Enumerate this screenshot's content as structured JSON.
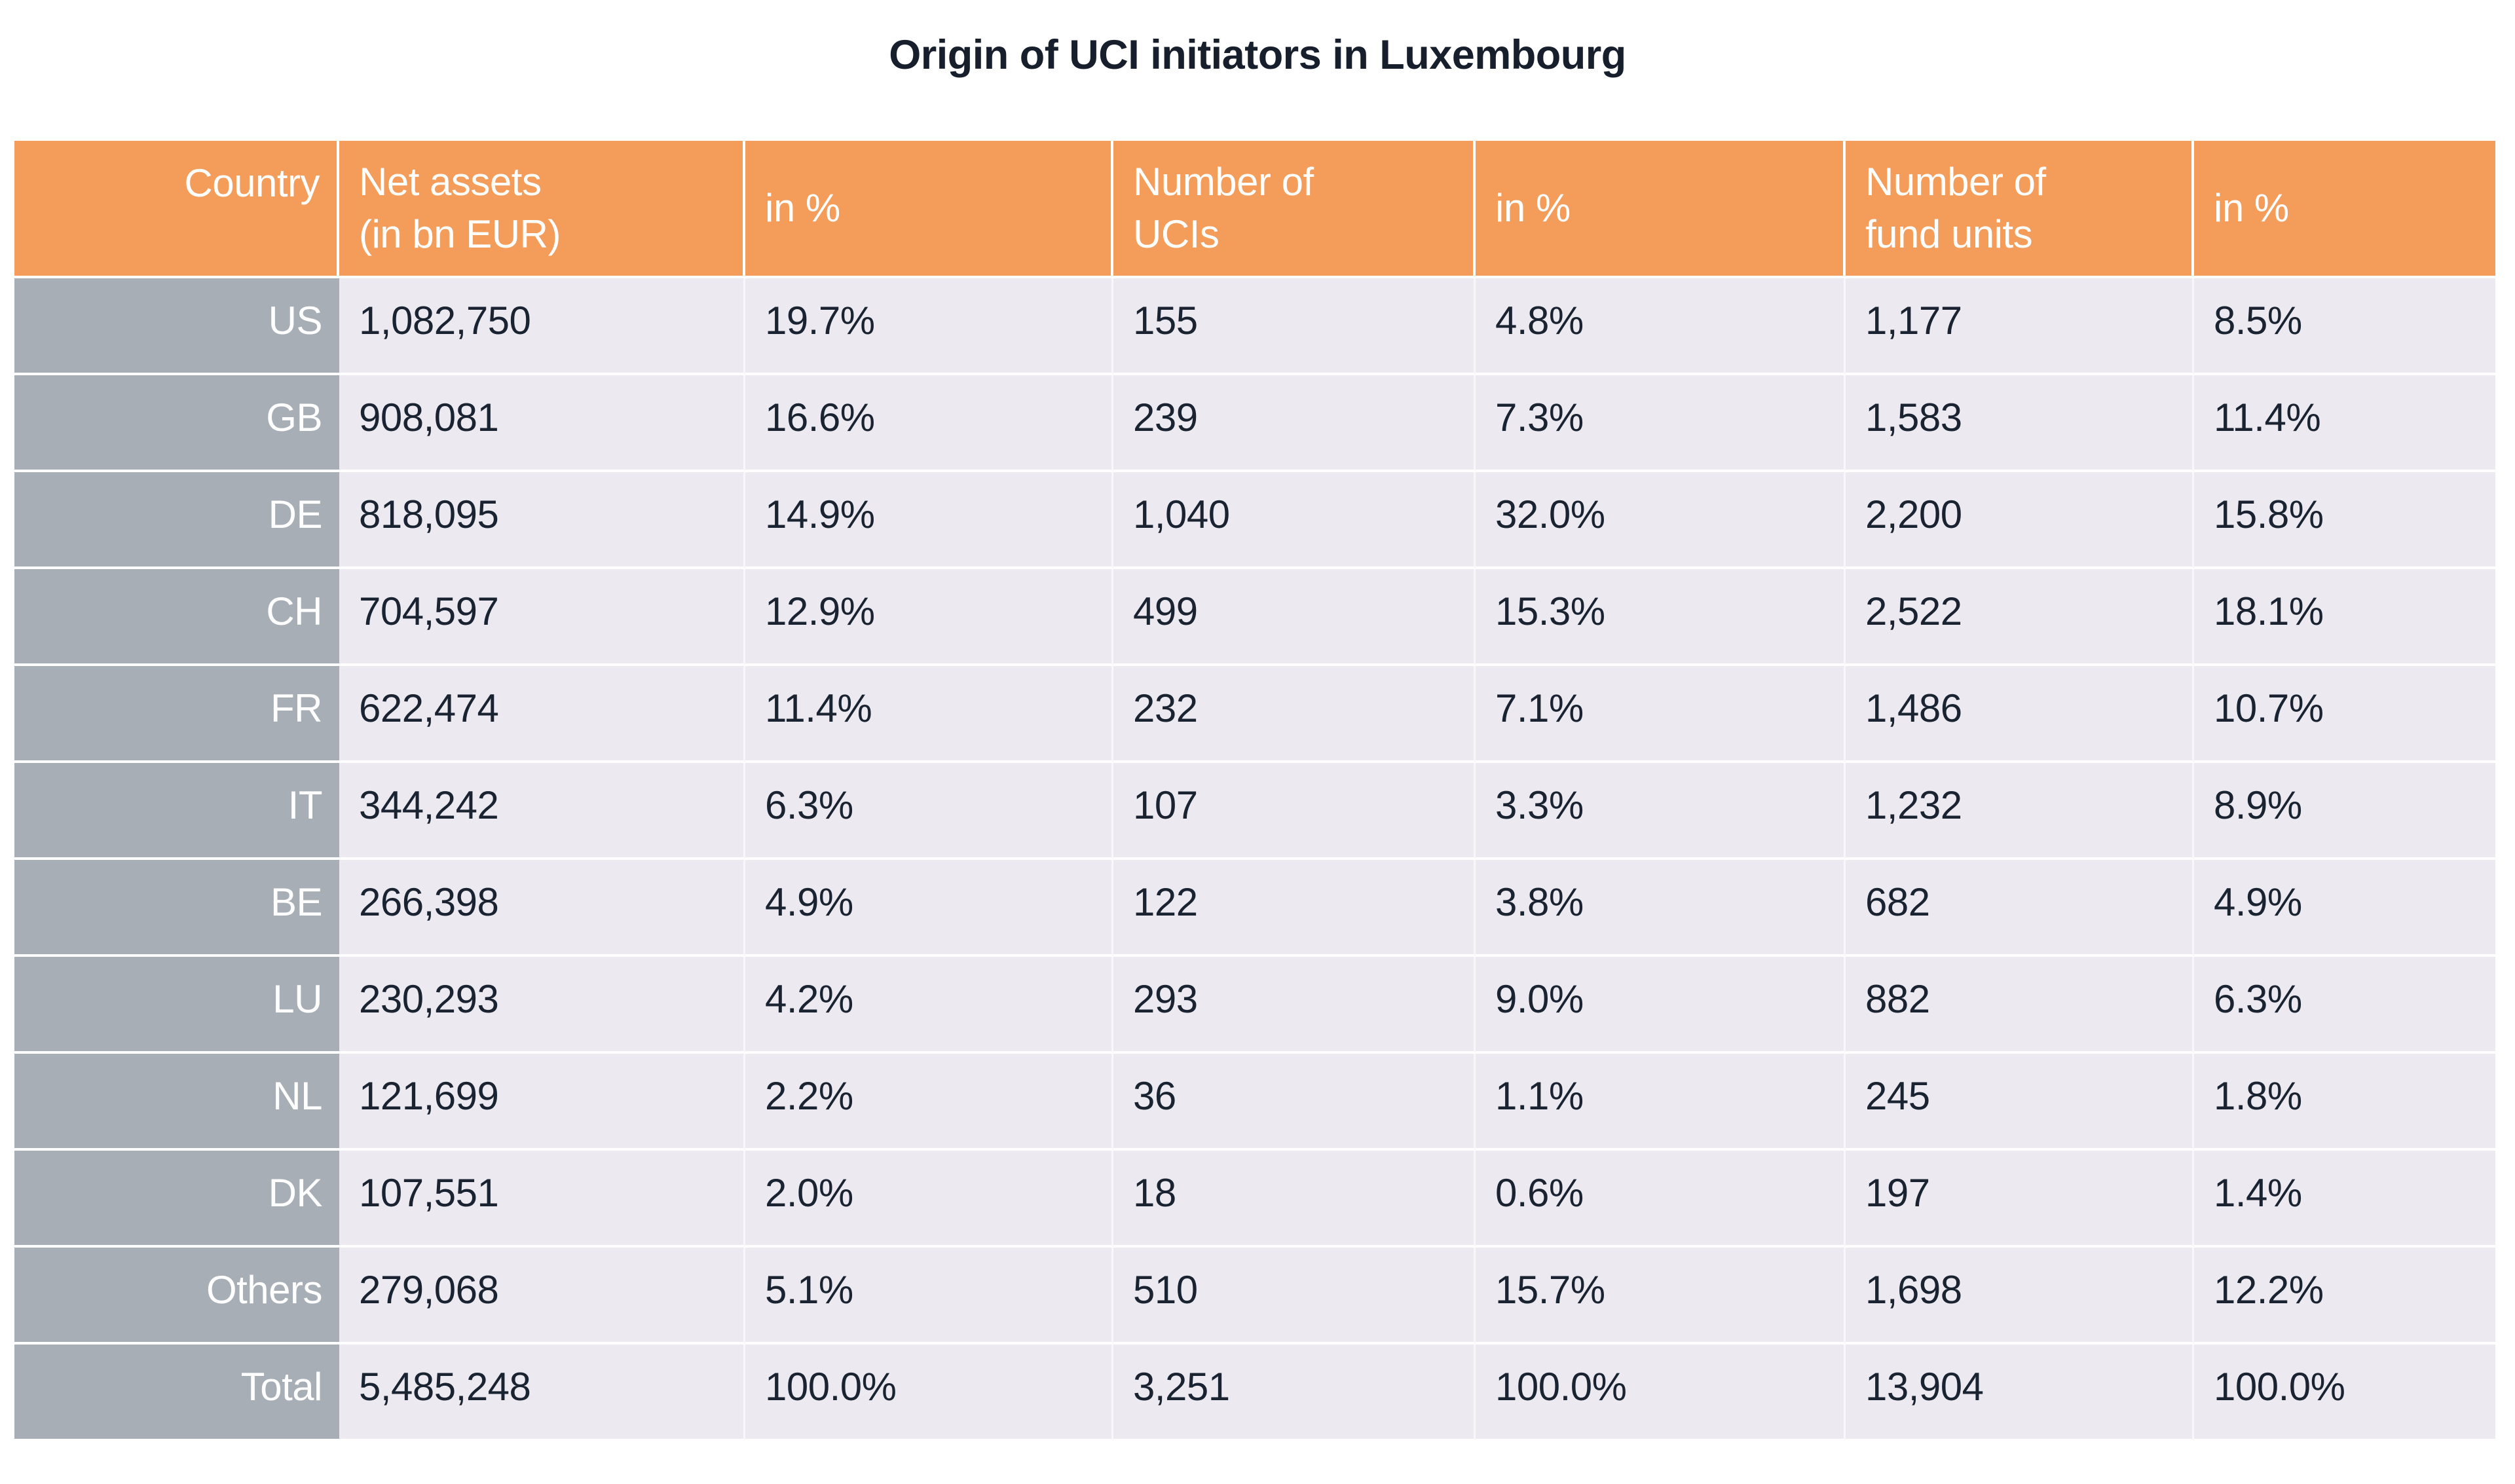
{
  "title": "Origin of UCI initiators in Luxembourg",
  "colors": {
    "header_bg": "#F49C5A",
    "country_column_bg": "#A8AEB5",
    "row_bg": "#ECEAF0",
    "text": "#1A2331",
    "header_text": "#FFFFFF"
  },
  "header": {
    "country": "Country",
    "net_assets": "Net assets\n(in bn EUR)",
    "net_assets_pct": "in %",
    "ucis": "Number of\nUCIs",
    "ucis_pct": "in %",
    "fund_units": "Number of\nfund units",
    "fund_units_pct": "in %"
  },
  "chart_data": {
    "type": "table",
    "title": "Origin of UCI initiators in Luxembourg",
    "columns": [
      "Country",
      "Net assets (in bn EUR)",
      "in %",
      "Number of UCIs",
      "in %",
      "Number of fund units",
      "in %"
    ],
    "rows": [
      {
        "country": "US",
        "net_assets": "1,082,750",
        "net_assets_pct": "19.7%",
        "ucis": "155",
        "ucis_pct": "4.8%",
        "fund_units": "1,177",
        "fund_units_pct": "8.5%"
      },
      {
        "country": "GB",
        "net_assets": "908,081",
        "net_assets_pct": "16.6%",
        "ucis": "239",
        "ucis_pct": "7.3%",
        "fund_units": "1,583",
        "fund_units_pct": "11.4%"
      },
      {
        "country": "DE",
        "net_assets": "818,095",
        "net_assets_pct": "14.9%",
        "ucis": "1,040",
        "ucis_pct": "32.0%",
        "fund_units": "2,200",
        "fund_units_pct": "15.8%"
      },
      {
        "country": "CH",
        "net_assets": "704,597",
        "net_assets_pct": "12.9%",
        "ucis": "499",
        "ucis_pct": "15.3%",
        "fund_units": "2,522",
        "fund_units_pct": "18.1%"
      },
      {
        "country": "FR",
        "net_assets": "622,474",
        "net_assets_pct": "11.4%",
        "ucis": "232",
        "ucis_pct": "7.1%",
        "fund_units": "1,486",
        "fund_units_pct": "10.7%"
      },
      {
        "country": "IT",
        "net_assets": "344,242",
        "net_assets_pct": "6.3%",
        "ucis": "107",
        "ucis_pct": "3.3%",
        "fund_units": "1,232",
        "fund_units_pct": "8.9%"
      },
      {
        "country": "BE",
        "net_assets": "266,398",
        "net_assets_pct": "4.9%",
        "ucis": "122",
        "ucis_pct": "3.8%",
        "fund_units": "682",
        "fund_units_pct": "4.9%"
      },
      {
        "country": "LU",
        "net_assets": "230,293",
        "net_assets_pct": "4.2%",
        "ucis": "293",
        "ucis_pct": "9.0%",
        "fund_units": "882",
        "fund_units_pct": "6.3%"
      },
      {
        "country": "NL",
        "net_assets": "121,699",
        "net_assets_pct": "2.2%",
        "ucis": "36",
        "ucis_pct": "1.1%",
        "fund_units": "245",
        "fund_units_pct": "1.8%"
      },
      {
        "country": "DK",
        "net_assets": "107,551",
        "net_assets_pct": "2.0%",
        "ucis": "18",
        "ucis_pct": "0.6%",
        "fund_units": "197",
        "fund_units_pct": "1.4%"
      },
      {
        "country": "Others",
        "net_assets": "279,068",
        "net_assets_pct": "5.1%",
        "ucis": "510",
        "ucis_pct": "15.7%",
        "fund_units": "1,698",
        "fund_units_pct": "12.2%"
      },
      {
        "country": "Total",
        "net_assets": "5,485,248",
        "net_assets_pct": "100.0%",
        "ucis": "3,251",
        "ucis_pct": "100.0%",
        "fund_units": "13,904",
        "fund_units_pct": "100.0%"
      }
    ]
  }
}
